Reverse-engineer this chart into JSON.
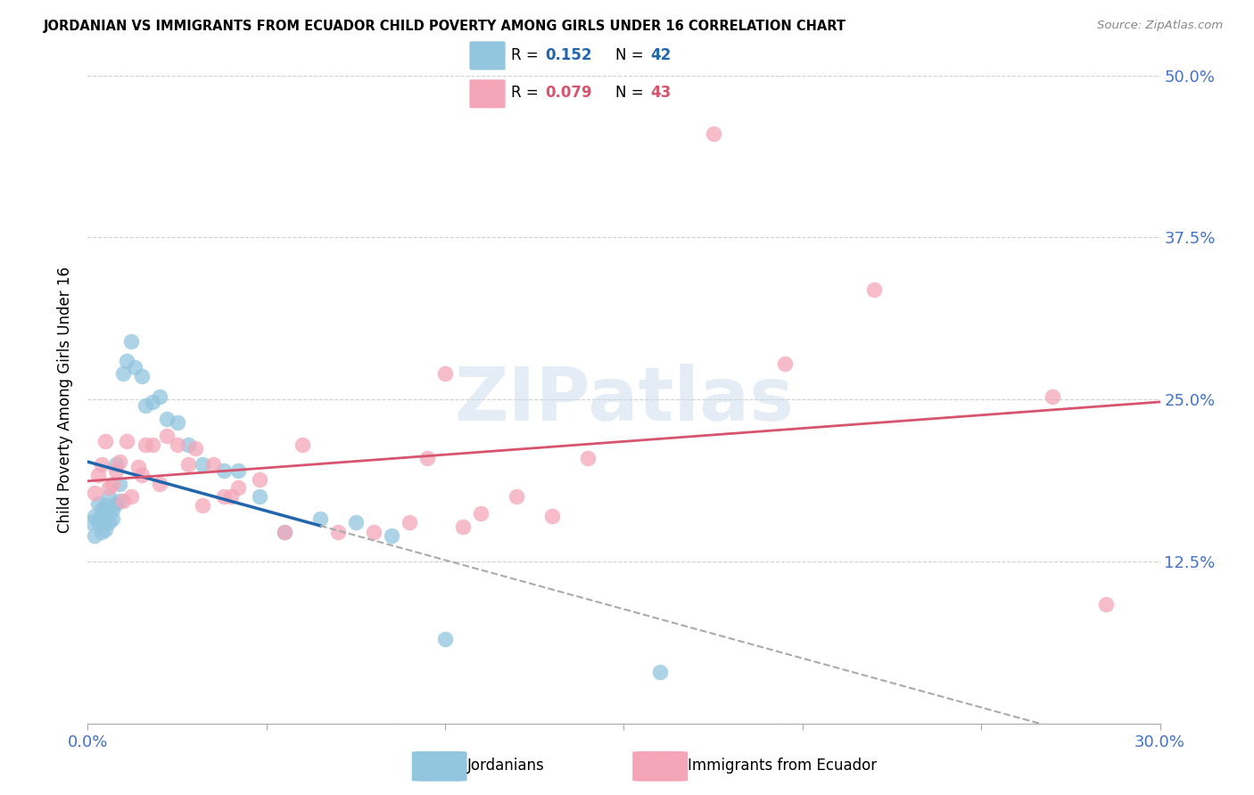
{
  "title": "JORDANIAN VS IMMIGRANTS FROM ECUADOR CHILD POVERTY AMONG GIRLS UNDER 16 CORRELATION CHART",
  "source": "Source: ZipAtlas.com",
  "ylabel": "Child Poverty Among Girls Under 16",
  "xmin": 0.0,
  "xmax": 0.3,
  "ymin": 0.0,
  "ymax": 0.5,
  "yticks": [
    0.0,
    0.125,
    0.25,
    0.375,
    0.5
  ],
  "ytick_labels": [
    "",
    "12.5%",
    "25.0%",
    "37.5%",
    "50.0%"
  ],
  "legend_R1": "0.152",
  "legend_N1": "42",
  "legend_R2": "0.079",
  "legend_N2": "43",
  "legend_label1": "Jordanians",
  "legend_label2": "Immigrants from Ecuador",
  "blue_color": "#92c5de",
  "blue_line_color": "#2166ac",
  "pink_color": "#f4a6b8",
  "pink_line_color": "#d6546e",
  "axis_color": "#4472c4",
  "watermark": "ZIPatlas",
  "blue_x": [
    0.001,
    0.002,
    0.002,
    0.003,
    0.003,
    0.003,
    0.004,
    0.004,
    0.004,
    0.005,
    0.005,
    0.005,
    0.006,
    0.006,
    0.006,
    0.007,
    0.007,
    0.008,
    0.008,
    0.009,
    0.009,
    0.01,
    0.011,
    0.012,
    0.013,
    0.015,
    0.016,
    0.018,
    0.02,
    0.022,
    0.025,
    0.028,
    0.032,
    0.038,
    0.042,
    0.048,
    0.055,
    0.065,
    0.075,
    0.085,
    0.1,
    0.16
  ],
  "blue_y": [
    0.155,
    0.16,
    0.145,
    0.155,
    0.17,
    0.158,
    0.148,
    0.165,
    0.155,
    0.162,
    0.15,
    0.168,
    0.155,
    0.175,
    0.162,
    0.158,
    0.165,
    0.2,
    0.17,
    0.185,
    0.172,
    0.27,
    0.28,
    0.295,
    0.275,
    0.268,
    0.245,
    0.248,
    0.252,
    0.235,
    0.232,
    0.215,
    0.2,
    0.195,
    0.195,
    0.175,
    0.148,
    0.158,
    0.155,
    0.145,
    0.065,
    0.04
  ],
  "pink_x": [
    0.002,
    0.003,
    0.004,
    0.005,
    0.006,
    0.007,
    0.008,
    0.009,
    0.01,
    0.011,
    0.012,
    0.014,
    0.015,
    0.016,
    0.018,
    0.02,
    0.022,
    0.025,
    0.028,
    0.03,
    0.032,
    0.035,
    0.038,
    0.04,
    0.042,
    0.048,
    0.055,
    0.06,
    0.07,
    0.08,
    0.09,
    0.095,
    0.1,
    0.105,
    0.11,
    0.12,
    0.13,
    0.14,
    0.175,
    0.195,
    0.22,
    0.27,
    0.285
  ],
  "pink_y": [
    0.178,
    0.192,
    0.2,
    0.218,
    0.182,
    0.185,
    0.195,
    0.202,
    0.172,
    0.218,
    0.175,
    0.198,
    0.192,
    0.215,
    0.215,
    0.185,
    0.222,
    0.215,
    0.2,
    0.212,
    0.168,
    0.2,
    0.175,
    0.175,
    0.182,
    0.188,
    0.148,
    0.215,
    0.148,
    0.148,
    0.155,
    0.205,
    0.27,
    0.152,
    0.162,
    0.175,
    0.16,
    0.205,
    0.455,
    0.278,
    0.335,
    0.252,
    0.092
  ]
}
